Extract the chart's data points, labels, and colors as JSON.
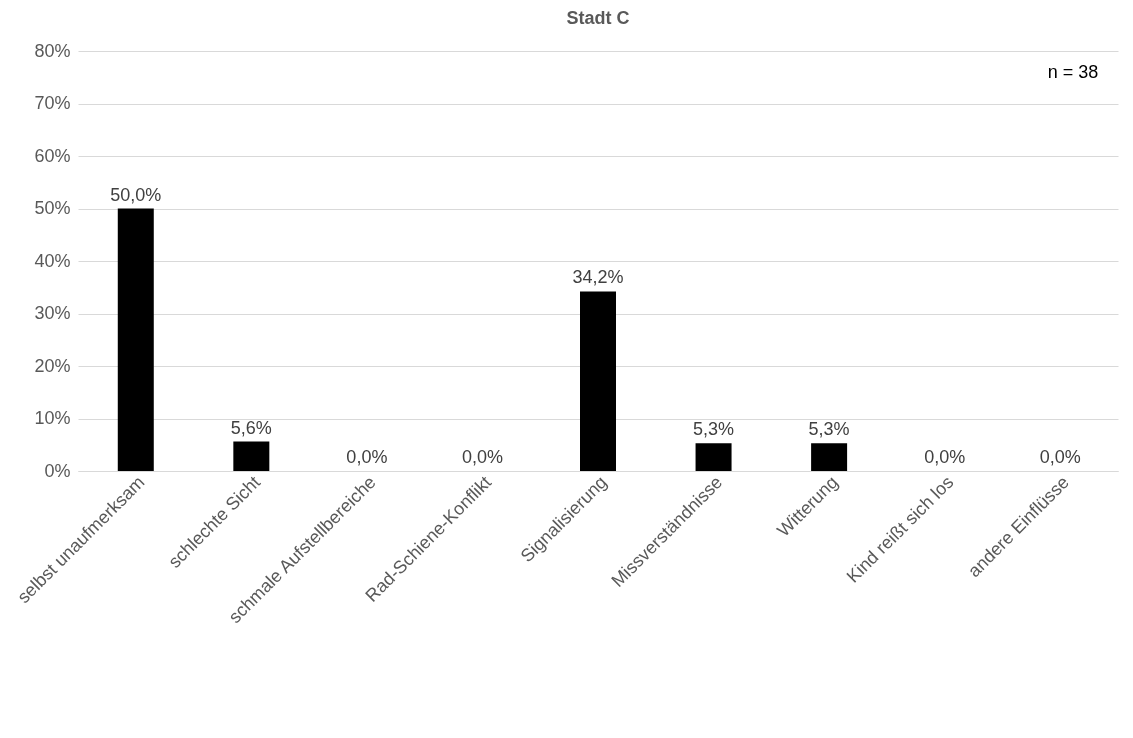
{
  "chart_data": {
    "type": "bar",
    "title": "Stadt C",
    "categories": [
      "selbst unaufmerksam",
      "schlechte Sicht",
      "schmale Aufstellbereiche",
      "Rad-Schiene-Konflikt",
      "Signalisierung",
      "Missverständnisse",
      "Witterung",
      "Kind reißt sich los",
      "andere Einflüsse"
    ],
    "values": [
      50.0,
      5.6,
      0,
      0,
      34.2,
      5.3,
      5.3,
      0,
      0
    ],
    "value_labels": [
      "50,0%",
      "5,6%",
      "0,0%",
      "0,0%",
      "34,2%",
      "5,3%",
      "5,3%",
      "0,0%",
      "0,0%"
    ],
    "color": "#000000",
    "ylim": [
      0,
      80
    ],
    "yticks": [
      {
        "value": 0,
        "label": "0%"
      },
      {
        "value": 10,
        "label": "10%"
      },
      {
        "value": 20,
        "label": "20%"
      },
      {
        "value": 30,
        "label": "30%"
      },
      {
        "value": 40,
        "label": "40%"
      },
      {
        "value": 50,
        "label": "50%"
      },
      {
        "value": 60,
        "label": "60%"
      },
      {
        "value": 70,
        "label": "70%"
      },
      {
        "value": 80,
        "label": "80%"
      }
    ],
    "grid": "y",
    "annotations": [
      "n = 38"
    ]
  }
}
